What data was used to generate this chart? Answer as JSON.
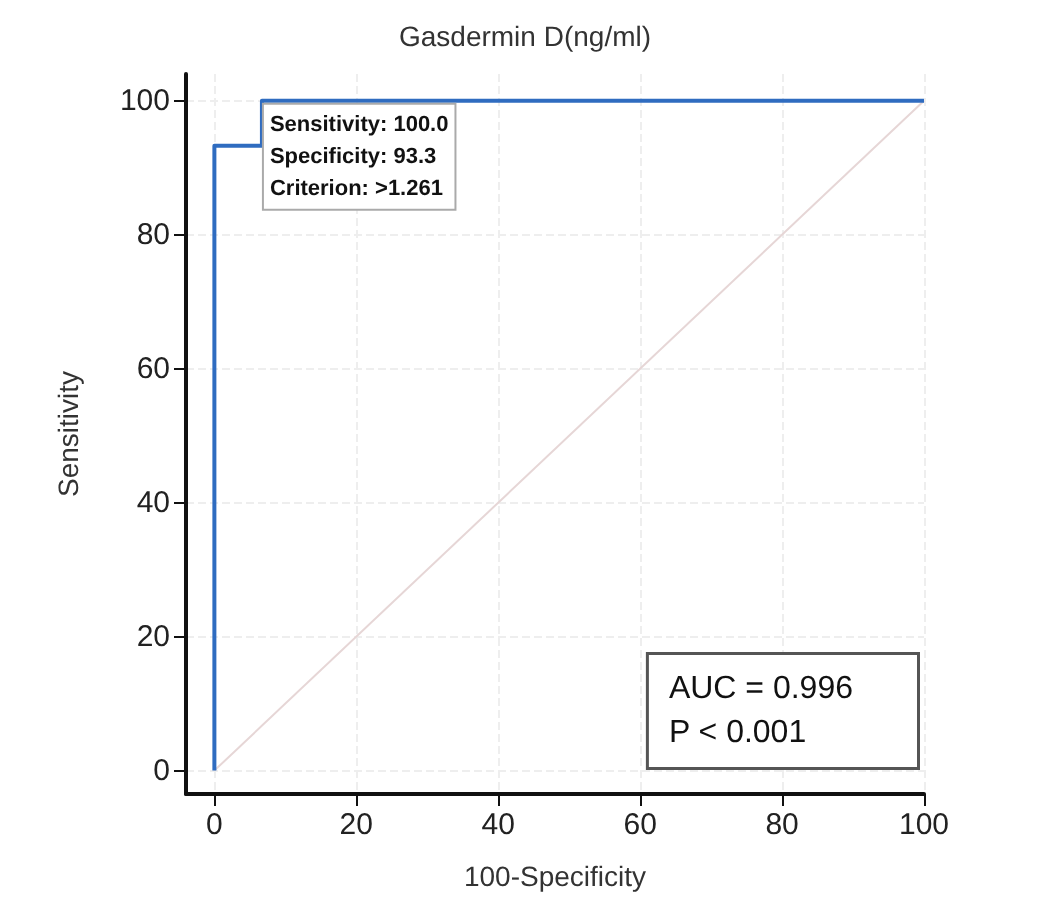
{
  "chart_data": {
    "type": "line",
    "title": "Gasdermin D(ng/ml)",
    "xlabel": "100-Specificity",
    "ylabel": "Sensitivity",
    "series": [
      {
        "type": "step",
        "color": "#2f6cc0",
        "x": [
          0,
          0,
          6.7,
          6.7,
          100
        ],
        "values": [
          0,
          93.3,
          93.3,
          100,
          100
        ]
      },
      {
        "color": "#e6d6d6",
        "x": [
          0,
          100
        ],
        "values": [
          0,
          100
        ]
      }
    ],
    "xlim": [
      -4,
      100
    ],
    "ylim": [
      -3.5,
      104
    ],
    "xticks": [
      0,
      20,
      40,
      60,
      80,
      100
    ],
    "yticks": [
      0,
      20,
      40,
      60,
      80,
      100
    ],
    "grid": true,
    "marker": "none",
    "line_style": "solid",
    "annotations": [
      {
        "text": "Sensitivity: 100.0\nSpecificity: 93.3\nCriterion: >1.261",
        "x": 6.7,
        "y": 100
      },
      "AUC = 0.996\nP < 0.001"
    ]
  }
}
